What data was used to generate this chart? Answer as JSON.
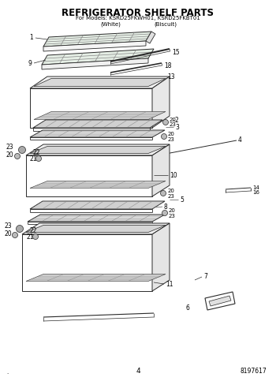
{
  "title": "REFRIGERATOR SHELF PARTS",
  "subtitle_line1": "For Models: KSRD25FKWH01, KSRD25FKBT01",
  "subtitle_line2_w": "(White)",
  "subtitle_line2_b": "(Biscuit)",
  "page_num": "4",
  "doc_num": "8197617",
  "bg_color": "#ffffff",
  "line_color": "#2a2a2a",
  "text_color": "#000000",
  "fig_width": 3.5,
  "fig_height": 4.83,
  "dpi": 100
}
